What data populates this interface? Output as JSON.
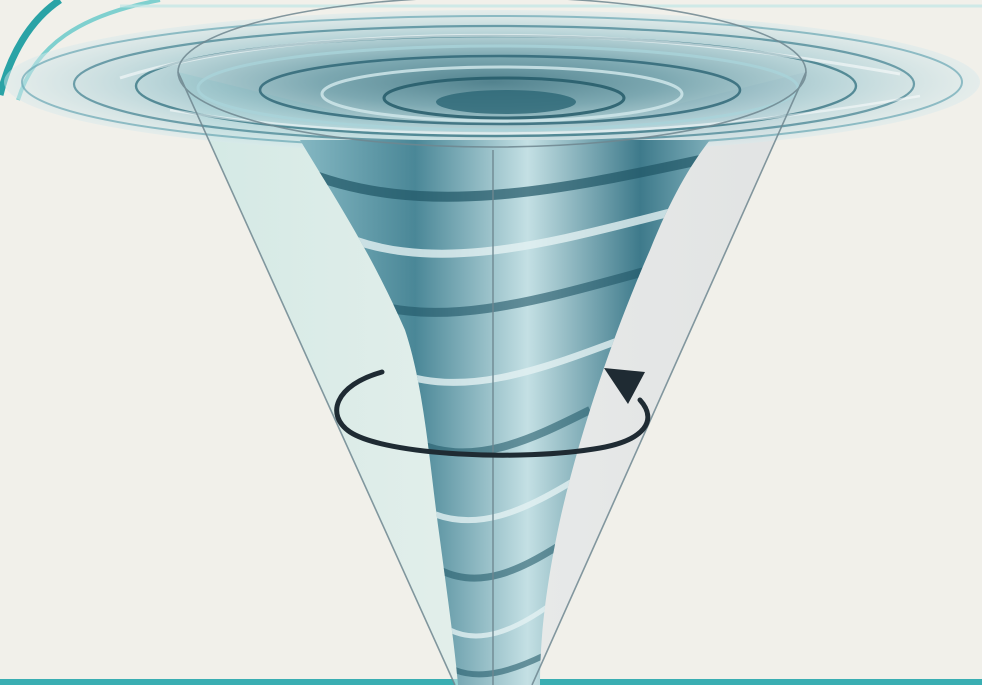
{
  "colors": {
    "background": "#f1f0ea",
    "water_dark": "#2f6f7e",
    "water_mid": "#5d9aa8",
    "water_light": "#a9d3da",
    "cone_left": "#cfe9e6",
    "cone_right": "#dfe3e6",
    "arrow": "#1f2b33",
    "accent_border": "#3aaeb2"
  },
  "icons": {
    "rotation_arrow": "counterclockwise-rotation-arrow-icon"
  }
}
